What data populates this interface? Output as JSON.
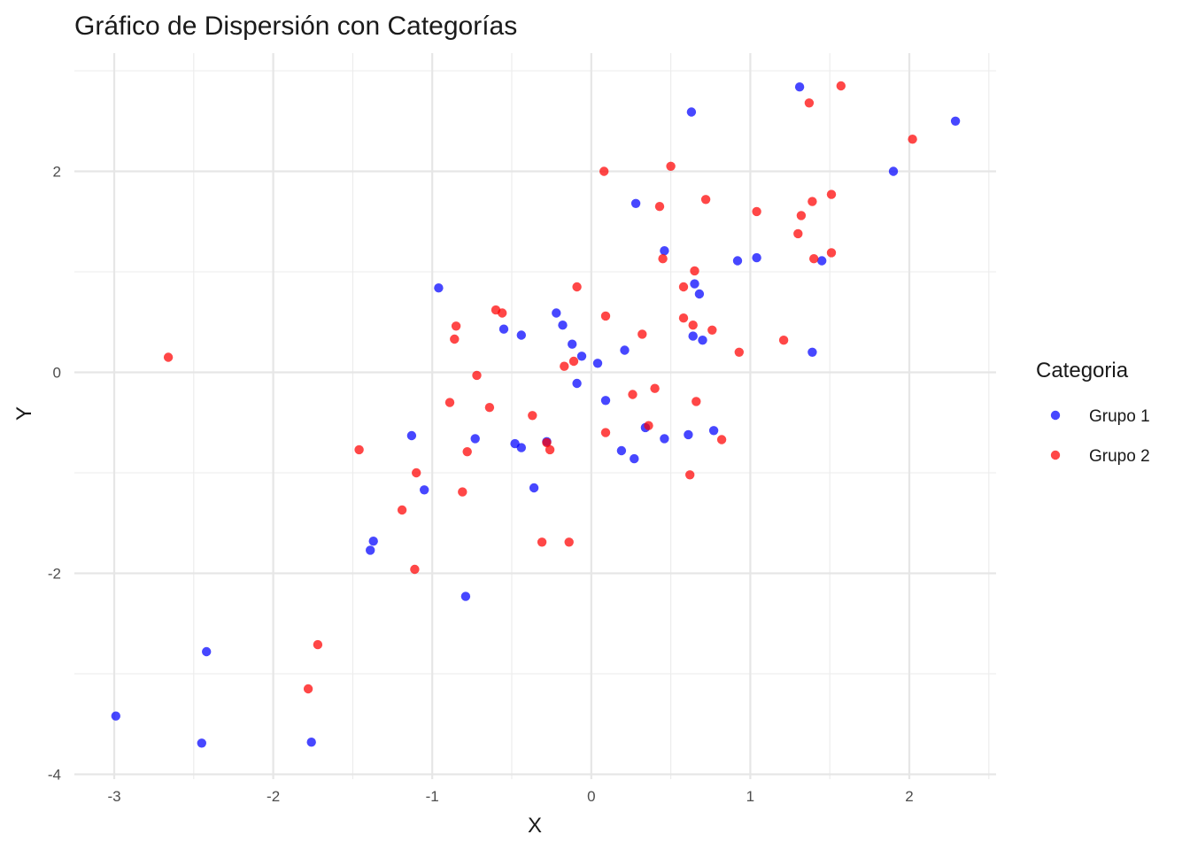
{
  "chart_data": {
    "type": "scatter",
    "title": "Gráfico de Dispersión con Categorías",
    "xlabel": "X",
    "ylabel": "Y",
    "xlim": [
      -3.2,
      2.5
    ],
    "ylim": [
      -4.0,
      3.0
    ],
    "x_ticks": [
      -3,
      -2,
      -1,
      0,
      1,
      2
    ],
    "y_ticks": [
      -4,
      -2,
      0,
      2
    ],
    "x_tick_labels": [
      "-3",
      "-2",
      "-1",
      "0",
      "1",
      "2"
    ],
    "y_tick_labels": [
      "-4",
      "-2",
      "0",
      "2"
    ],
    "grid": true,
    "legend": {
      "title": "Categoria",
      "position": "right"
    },
    "series": [
      {
        "name": "Grupo 1",
        "color": "#0000ff",
        "points": [
          [
            -2.99,
            -3.42
          ],
          [
            -2.45,
            -3.69
          ],
          [
            -2.42,
            -2.78
          ],
          [
            -1.76,
            -3.68
          ],
          [
            -1.39,
            -1.77
          ],
          [
            -1.37,
            -1.68
          ],
          [
            -1.13,
            -0.63
          ],
          [
            -1.05,
            -1.17
          ],
          [
            -0.96,
            0.84
          ],
          [
            -0.79,
            -2.23
          ],
          [
            -0.73,
            -0.66
          ],
          [
            -0.55,
            0.43
          ],
          [
            -0.48,
            -0.71
          ],
          [
            -0.44,
            -0.75
          ],
          [
            -0.44,
            0.37
          ],
          [
            -0.36,
            -1.15
          ],
          [
            -0.28,
            -0.69
          ],
          [
            -0.22,
            0.59
          ],
          [
            -0.18,
            0.47
          ],
          [
            -0.12,
            0.28
          ],
          [
            -0.09,
            -0.11
          ],
          [
            -0.06,
            0.16
          ],
          [
            0.04,
            0.09
          ],
          [
            0.09,
            -0.28
          ],
          [
            0.19,
            -0.78
          ],
          [
            0.21,
            0.22
          ],
          [
            0.27,
            -0.86
          ],
          [
            0.28,
            1.68
          ],
          [
            0.34,
            -0.55
          ],
          [
            0.46,
            -0.66
          ],
          [
            0.46,
            1.21
          ],
          [
            0.61,
            -0.62
          ],
          [
            0.63,
            2.59
          ],
          [
            0.64,
            0.36
          ],
          [
            0.65,
            0.88
          ],
          [
            0.68,
            0.78
          ],
          [
            0.7,
            0.32
          ],
          [
            0.77,
            -0.58
          ],
          [
            0.92,
            1.11
          ],
          [
            1.04,
            1.14
          ],
          [
            1.31,
            2.84
          ],
          [
            1.39,
            0.2
          ],
          [
            1.45,
            1.11
          ],
          [
            1.9,
            2.0
          ],
          [
            2.29,
            2.5
          ]
        ]
      },
      {
        "name": "Grupo 2",
        "color": "#ff0000",
        "points": [
          [
            -2.66,
            0.15
          ],
          [
            -1.78,
            -3.15
          ],
          [
            -1.72,
            -2.71
          ],
          [
            -1.46,
            -0.77
          ],
          [
            -1.19,
            -1.37
          ],
          [
            -1.11,
            -1.96
          ],
          [
            -1.1,
            -1.0
          ],
          [
            -0.89,
            -0.3
          ],
          [
            -0.86,
            0.33
          ],
          [
            -0.85,
            0.46
          ],
          [
            -0.81,
            -1.19
          ],
          [
            -0.78,
            -0.79
          ],
          [
            -0.72,
            -0.03
          ],
          [
            -0.64,
            -0.35
          ],
          [
            -0.6,
            0.62
          ],
          [
            -0.56,
            0.59
          ],
          [
            -0.37,
            -0.43
          ],
          [
            -0.31,
            -1.69
          ],
          [
            -0.28,
            -0.7
          ],
          [
            -0.26,
            -0.77
          ],
          [
            -0.17,
            0.06
          ],
          [
            -0.14,
            -1.69
          ],
          [
            -0.11,
            0.11
          ],
          [
            -0.09,
            0.85
          ],
          [
            0.08,
            2.0
          ],
          [
            0.09,
            0.56
          ],
          [
            0.09,
            -0.6
          ],
          [
            0.26,
            -0.22
          ],
          [
            0.32,
            0.38
          ],
          [
            0.36,
            -0.53
          ],
          [
            0.4,
            -0.16
          ],
          [
            0.43,
            1.65
          ],
          [
            0.45,
            1.13
          ],
          [
            0.5,
            2.05
          ],
          [
            0.58,
            0.54
          ],
          [
            0.58,
            0.85
          ],
          [
            0.62,
            -1.02
          ],
          [
            0.64,
            0.47
          ],
          [
            0.65,
            1.01
          ],
          [
            0.66,
            -0.29
          ],
          [
            0.72,
            1.72
          ],
          [
            0.76,
            0.42
          ],
          [
            0.82,
            -0.67
          ],
          [
            0.93,
            0.2
          ],
          [
            1.04,
            1.6
          ],
          [
            1.21,
            0.32
          ],
          [
            1.3,
            1.38
          ],
          [
            1.32,
            1.56
          ],
          [
            1.37,
            2.68
          ],
          [
            1.39,
            1.7
          ],
          [
            1.4,
            1.13
          ],
          [
            1.51,
            1.19
          ],
          [
            1.51,
            1.77
          ],
          [
            1.57,
            2.85
          ],
          [
            2.02,
            2.32
          ]
        ]
      }
    ]
  }
}
